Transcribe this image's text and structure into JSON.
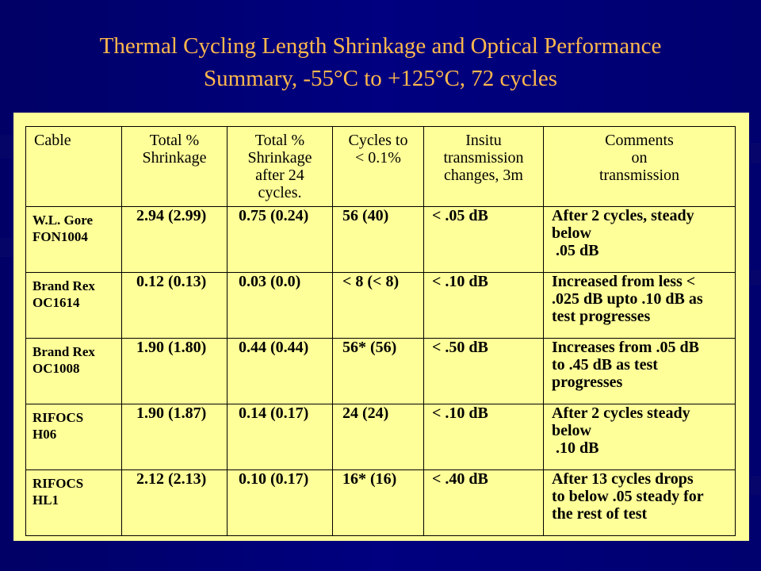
{
  "title": {
    "line1": "Thermal Cycling Length Shrinkage and Optical Performance",
    "line2": "Summary, -55°C to +125°C, 72 cycles"
  },
  "table": {
    "headers": [
      "Cable",
      "Total %\nShrinkage",
      "Total %\nShrinkage\nafter 24\ncycles.",
      "Cycles to\n< 0.1%",
      "Insitu\ntransmission\nchanges, 3m",
      "Comments\non\ntransmission"
    ],
    "rows": [
      [
        "W.L. Gore\nFON1004",
        "2.94 (2.99)",
        "0.75 (0.24)",
        "56 (40)",
        "< .05 dB",
        "After 2 cycles, steady\nbelow\n .05 dB"
      ],
      [
        "Brand Rex\nOC1614",
        "0.12 (0.13)",
        "0.03 (0.0)",
        "< 8 (< 8)",
        "< .10 dB",
        "Increased from less <\n.025 dB upto .10 dB as\ntest progresses"
      ],
      [
        "Brand Rex\nOC1008",
        "1.90 (1.80)",
        "0.44 (0.44)",
        "56* (56)",
        "< .50 dB",
        "Increases from .05 dB\nto .45 dB as test\nprogresses"
      ],
      [
        "RIFOCS\nH06",
        "1.90 (1.87)",
        "0.14 (0.17)",
        "24 (24)",
        "< .10 dB",
        "After 2 cycles steady\nbelow\n .10 dB"
      ],
      [
        "RIFOCS\nHL1",
        "2.12 (2.13)",
        "0.10 (0.17)",
        "16* (16)",
        "< .40 dB",
        "After 13 cycles drops\nto below .05 steady for\nthe rest of test"
      ]
    ]
  }
}
